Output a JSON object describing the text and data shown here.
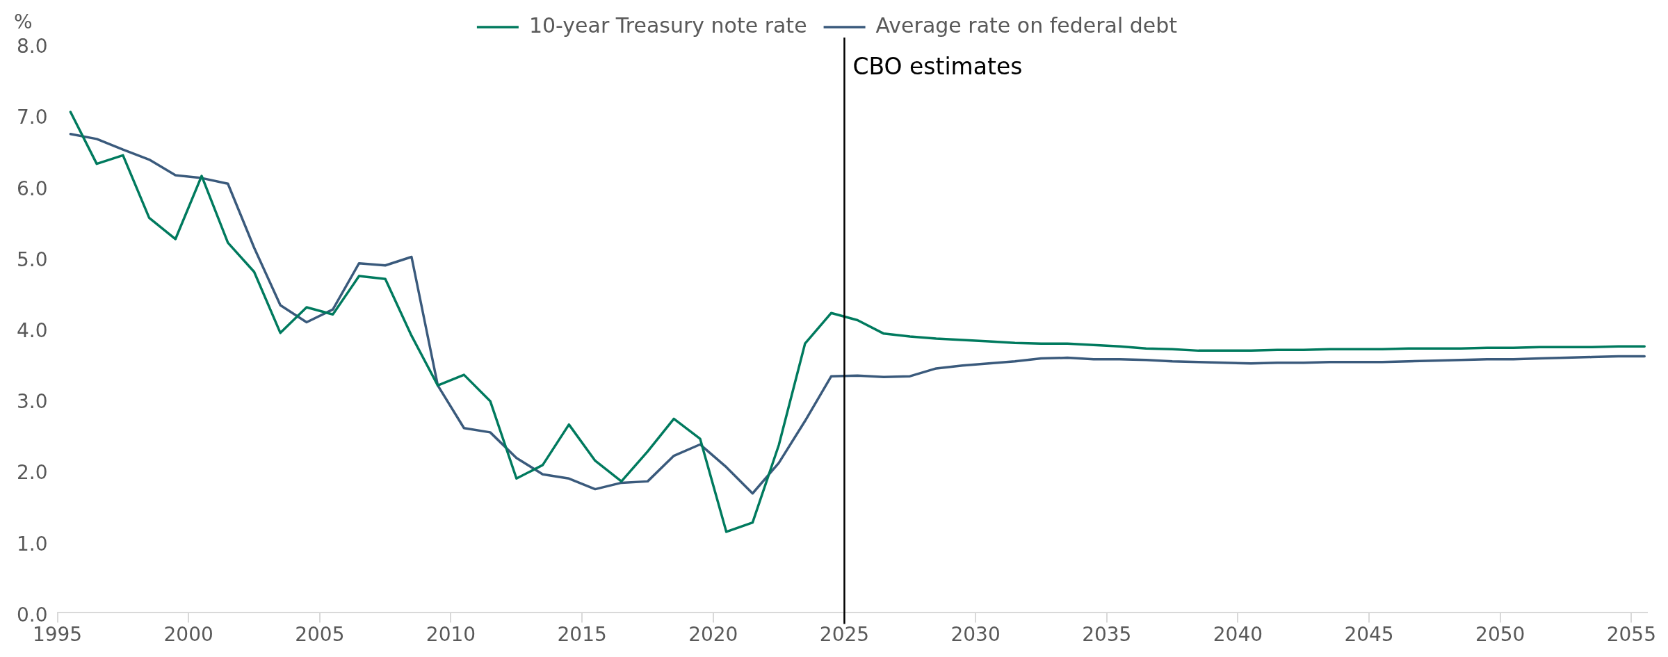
{
  "chart_data": {
    "type": "line",
    "ylabel": "%",
    "x": [
      1995.5,
      1996.5,
      1997.5,
      1998.5,
      1999.5,
      2000.5,
      2001.5,
      2002.5,
      2003.5,
      2004.5,
      2005.5,
      2006.5,
      2007.5,
      2008.5,
      2009.5,
      2010.5,
      2011.5,
      2012.5,
      2013.5,
      2014.5,
      2015.5,
      2016.5,
      2017.5,
      2018.5,
      2019.5,
      2020.5,
      2021.5,
      2022.5,
      2023.5,
      2024.5,
      2025.5,
      2026.5,
      2027.5,
      2028.5,
      2029.5,
      2030.5,
      2031.5,
      2032.5,
      2033.5,
      2034.5,
      2035.5,
      2036.5,
      2037.5,
      2038.5,
      2039.5,
      2040.5,
      2041.5,
      2042.5,
      2043.5,
      2044.5,
      2045.5,
      2046.5,
      2047.5,
      2048.5,
      2049.5,
      2050.5,
      2051.5,
      2052.5,
      2053.5,
      2054.5,
      2055.5
    ],
    "series": [
      {
        "name": "10-year Treasury note rate",
        "color": "#007a5e",
        "values": [
          7.05,
          6.32,
          6.44,
          5.56,
          5.26,
          6.15,
          5.21,
          4.8,
          3.94,
          4.3,
          4.2,
          4.74,
          4.7,
          3.9,
          3.2,
          3.35,
          2.98,
          1.89,
          2.08,
          2.65,
          2.14,
          1.85,
          2.27,
          2.73,
          2.45,
          1.14,
          1.27,
          2.36,
          3.79,
          4.22,
          4.12,
          3.93,
          3.89,
          3.86,
          3.84,
          3.82,
          3.8,
          3.79,
          3.79,
          3.77,
          3.75,
          3.72,
          3.71,
          3.69,
          3.69,
          3.69,
          3.7,
          3.7,
          3.71,
          3.71,
          3.71,
          3.72,
          3.72,
          3.72,
          3.73,
          3.73,
          3.74,
          3.74,
          3.74,
          3.75,
          3.75
        ]
      },
      {
        "name": "Average rate on federal debt",
        "color": "#3a5a7c",
        "values": [
          6.74,
          6.67,
          6.52,
          6.38,
          6.16,
          6.12,
          6.04,
          5.14,
          4.33,
          4.09,
          4.27,
          4.92,
          4.89,
          5.01,
          3.2,
          2.6,
          2.54,
          2.18,
          1.95,
          1.89,
          1.74,
          1.83,
          1.85,
          2.21,
          2.37,
          2.05,
          1.68,
          2.11,
          2.7,
          3.33,
          3.34,
          3.32,
          3.33,
          3.44,
          3.48,
          3.51,
          3.54,
          3.58,
          3.59,
          3.57,
          3.57,
          3.56,
          3.54,
          3.53,
          3.52,
          3.51,
          3.52,
          3.52,
          3.53,
          3.53,
          3.53,
          3.54,
          3.55,
          3.56,
          3.57,
          3.57,
          3.58,
          3.59,
          3.6,
          3.61,
          3.61
        ]
      }
    ],
    "xlim": [
      1995,
      2055.6
    ],
    "xticks": [
      1995,
      2000,
      2005,
      2010,
      2015,
      2020,
      2025,
      2030,
      2035,
      2040,
      2045,
      2050,
      2055
    ],
    "ylim": [
      0,
      8
    ],
    "yticks": [
      {
        "value": 0,
        "label": "0.0"
      },
      {
        "value": 1,
        "label": "1.0"
      },
      {
        "value": 2,
        "label": "2.0"
      },
      {
        "value": 3,
        "label": "3.0"
      },
      {
        "value": 4,
        "label": "4.0"
      },
      {
        "value": 5,
        "label": "5.0"
      },
      {
        "value": 6,
        "label": "6.0"
      },
      {
        "value": 7,
        "label": "7.0"
      },
      {
        "value": 8,
        "label": "8.0"
      }
    ],
    "ref_lines": [
      {
        "axis": "x",
        "value": 2025,
        "label": "CBO estimates",
        "color": "#000000"
      }
    ],
    "grid": false,
    "legend": "top",
    "marker": "none",
    "line_style": "solid"
  }
}
